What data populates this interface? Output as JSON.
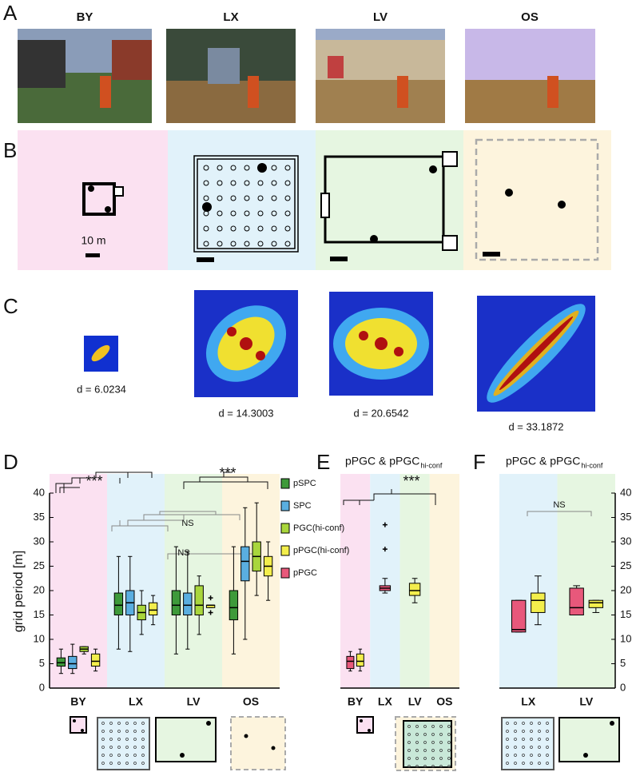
{
  "panel_labels": [
    "A",
    "B",
    "C",
    "D",
    "E",
    "F"
  ],
  "panel_a": {
    "titles": [
      "BY",
      "LX",
      "LV",
      "OS"
    ]
  },
  "panel_b": {
    "scale_label": "10 m"
  },
  "panel_c": {
    "labels": [
      "d = 6.0234",
      "d = 14.3003",
      "d = 20.6542",
      "d = 33.1872"
    ]
  },
  "chart_data": [
    {
      "type": "box",
      "ylabel": "grid period [m]",
      "categories": [
        "BY",
        "LX",
        "LV",
        "OS"
      ],
      "band_colors": [
        "#fbe1f1",
        "#e1f2fa",
        "#e6f6e1",
        "#fdf4dd"
      ],
      "ylim": [
        0,
        40
      ],
      "yticks": [
        0,
        5,
        10,
        15,
        20,
        25,
        30,
        35,
        40
      ],
      "y_axis_side": "left",
      "legend": true,
      "annotations": [
        "***",
        "NS",
        "***",
        "NS"
      ],
      "series": [
        {
          "name": "pSPC",
          "color": "#3e9a3a",
          "values": [
            {
              "min": 3,
              "q1": 4.5,
              "median": 5.2,
              "q3": 6.2,
              "max": 8
            },
            {
              "min": 8,
              "q1": 15,
              "median": 17,
              "q3": 19.5,
              "max": 27
            },
            {
              "min": 7,
              "q1": 15,
              "median": 17,
              "q3": 20,
              "max": 29
            },
            {
              "min": 7,
              "q1": 14,
              "median": 16.5,
              "q3": 20,
              "max": 29
            }
          ]
        },
        {
          "name": "SPC",
          "color": "#5aaee0",
          "values": [
            {
              "min": 3,
              "q1": 4,
              "median": 5,
              "q3": 6.5,
              "max": 9
            },
            {
              "min": 7.5,
              "q1": 15,
              "median": 17.5,
              "q3": 20,
              "max": 27
            },
            {
              "min": 8,
              "q1": 15,
              "median": 17,
              "q3": 19.5,
              "max": 28
            },
            {
              "min": 10,
              "q1": 22,
              "median": 26,
              "q3": 29,
              "max": 37
            }
          ]
        },
        {
          "name": "PGC(hi-conf)",
          "color": "#a9d63c",
          "values": [
            {
              "min": 7,
              "q1": 7.5,
              "median": 8,
              "q3": 8.5,
              "max": 8.5
            },
            {
              "min": 11,
              "q1": 14,
              "median": 15.5,
              "q3": 17,
              "max": 20
            },
            {
              "min": 11,
              "q1": 15,
              "median": 17,
              "q3": 21,
              "max": 23
            },
            {
              "min": 19,
              "q1": 24,
              "median": 27,
              "q3": 30,
              "max": 38
            }
          ]
        },
        {
          "name": "pPGC(hi-conf)",
          "color": "#f3ee4c",
          "values": [
            {
              "min": 3.5,
              "q1": 4.5,
              "median": 5.5,
              "q3": 7,
              "max": 8
            },
            {
              "min": 13,
              "q1": 15,
              "median": 16,
              "q3": 17.5,
              "max": 19
            },
            {
              "min": 16.5,
              "q1": 16.5,
              "median": 17,
              "q3": 17,
              "max": 17,
              "outliers": [
                15.5,
                18.5
              ]
            },
            {
              "min": 18,
              "q1": 23,
              "median": 25,
              "q3": 27,
              "max": 30
            }
          ]
        },
        {
          "name": "pPGC",
          "color": "#e8587b",
          "values": [
            null,
            null,
            null,
            null
          ]
        }
      ]
    },
    {
      "type": "box",
      "title": "pPGC & pPGC",
      "title_sub": "hi-conf",
      "categories": [
        "BY",
        "LX",
        "LV",
        "OS"
      ],
      "band_colors": [
        "#fbe1f1",
        "#e1f2fa",
        "#e6f6e1",
        "#fdf4dd"
      ],
      "ylim": [
        0,
        40
      ],
      "annotations": [
        "***"
      ],
      "series": [
        {
          "name": "pPGC",
          "color": "#e8587b",
          "values": [
            {
              "min": 3.5,
              "q1": 4,
              "median": 5.5,
              "q3": 6.5,
              "max": 7.5
            },
            {
              "min": 19.5,
              "q1": 20,
              "median": 20.5,
              "q3": 21,
              "max": 22.5,
              "outliers": [
                28.5,
                33.5
              ]
            },
            null,
            null
          ]
        },
        {
          "name": "pPGC(hi-conf)",
          "color": "#f3ee4c",
          "values": [
            {
              "min": 3.5,
              "q1": 4.5,
              "median": 5.5,
              "q3": 7,
              "max": 8
            },
            null,
            {
              "min": 17.5,
              "q1": 19,
              "median": 20,
              "q3": 21.5,
              "max": 22.5
            },
            null
          ]
        }
      ]
    },
    {
      "type": "box",
      "title": "pPGC & pPGC",
      "title_sub": "hi-conf",
      "categories": [
        "LX",
        "LV"
      ],
      "band_colors": [
        "#e1f2fa",
        "#e6f6e1"
      ],
      "ylim": [
        0,
        40
      ],
      "yticks": [
        0,
        5,
        10,
        15,
        20,
        25,
        30,
        35,
        40
      ],
      "y_axis_side": "right",
      "annotations": [
        "NS"
      ],
      "series": [
        {
          "name": "pPGC",
          "color": "#e8587b",
          "values": [
            {
              "min": 11.5,
              "q1": 11.5,
              "median": 12,
              "q3": 18,
              "max": 18
            },
            {
              "min": 15,
              "q1": 15,
              "median": 16.5,
              "q3": 20.5,
              "max": 21
            }
          ]
        },
        {
          "name": "pPGC(hi-conf)",
          "color": "#f3ee4c",
          "values": [
            {
              "min": 13,
              "q1": 15.5,
              "median": 18,
              "q3": 19.5,
              "max": 23
            },
            {
              "min": 15.5,
              "q1": 16.5,
              "median": 17.5,
              "q3": 18,
              "max": 18
            }
          ]
        }
      ]
    }
  ]
}
